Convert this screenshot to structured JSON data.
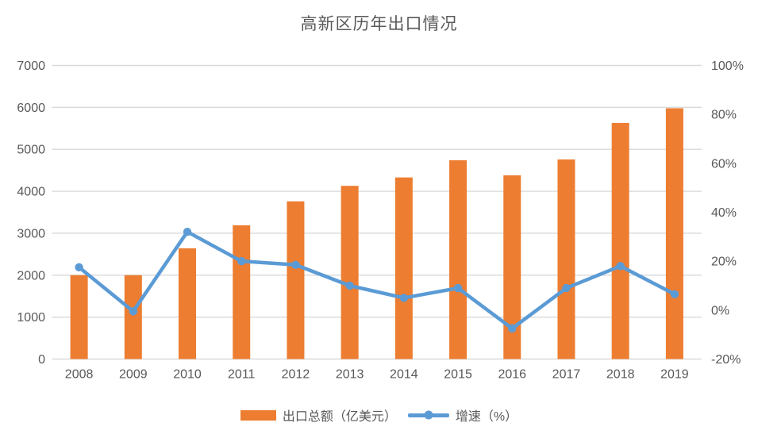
{
  "title": "高新区历年出口情况",
  "chart_data": {
    "type": "combo",
    "title": "高新区历年出口情况",
    "categories": [
      "2008",
      "2009",
      "2010",
      "2011",
      "2012",
      "2013",
      "2014",
      "2015",
      "2016",
      "2017",
      "2018",
      "2019"
    ],
    "series": [
      {
        "name": "出口总额（亿美元）",
        "type": "bar",
        "axis": "left",
        "color": "#ED7D31",
        "values": [
          2000,
          2000,
          2640,
          3190,
          3760,
          4130,
          4330,
          4740,
          4380,
          4760,
          5630,
          5980
        ]
      },
      {
        "name": "增速（%）",
        "type": "line",
        "axis": "right",
        "color": "#5B9BD5",
        "values": [
          17.5,
          -0.5,
          32,
          20,
          18.5,
          10,
          5,
          9,
          -7.5,
          9,
          18,
          6.5
        ]
      }
    ],
    "left_axis": {
      "min": 0,
      "max": 7000,
      "step": 1000,
      "tick_labels": [
        "0",
        "1000",
        "2000",
        "3000",
        "4000",
        "5000",
        "6000",
        "7000"
      ]
    },
    "right_axis": {
      "min": -20,
      "max": 100,
      "step": 20,
      "tick_labels": [
        "-20%",
        "0%",
        "20%",
        "40%",
        "60%",
        "80%",
        "100%"
      ]
    },
    "grid": "horizontal-left-axis",
    "legend_position": "bottom",
    "colors": {
      "bar": "#ED7D31",
      "line": "#5B9BD5",
      "gridline": "#D9D9D9",
      "axis_text": "#595959",
      "title_text": "#595959",
      "background": "#FFFFFF"
    }
  },
  "legend": {
    "items": [
      {
        "label": "出口总额（亿美元）",
        "swatch": "bar"
      },
      {
        "label": "增速（%）",
        "swatch": "line-with-dot"
      }
    ]
  }
}
